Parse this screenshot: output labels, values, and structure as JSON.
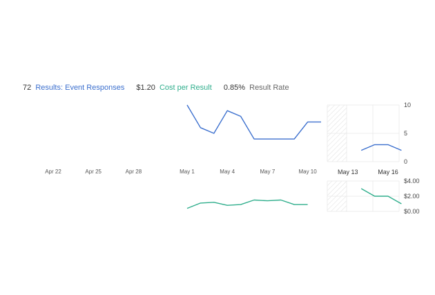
{
  "summary": {
    "results": {
      "value": "72",
      "label": "Results: Event Responses",
      "color": "#3b6fce"
    },
    "cost": {
      "value": "$1.20",
      "label": "Cost per Result",
      "color": "#2fae8c"
    },
    "rate": {
      "value": "0.85%",
      "label": "Result Rate",
      "color": "#666666"
    }
  },
  "chart_data": [
    {
      "type": "line",
      "x": [
        "Apr 22",
        "Apr 25",
        "Apr 28",
        "May 1",
        "May 4",
        "May 7",
        "May 10",
        "May 13",
        "May 16"
      ],
      "series": [
        {
          "values": [
            {
              "x": "May 1",
              "y": 10
            },
            {
              "x": "May 2",
              "y": 6
            },
            {
              "x": "May 3",
              "y": 5
            },
            {
              "x": "May 4",
              "y": 9
            },
            {
              "x": "May 5",
              "y": 8
            },
            {
              "x": "May 6",
              "y": 4
            },
            {
              "x": "May 7",
              "y": 4
            },
            {
              "x": "May 8",
              "y": 4
            },
            {
              "x": "May 9",
              "y": 4
            },
            {
              "x": "May 10",
              "y": 7
            },
            {
              "x": "May 11",
              "y": 7
            },
            {
              "x": "May 14",
              "y": 2
            },
            {
              "x": "May 15",
              "y": 3
            },
            {
              "x": "May 16",
              "y": 3
            },
            {
              "x": "May 17",
              "y": 2
            }
          ],
          "color": "#3b6fce"
        }
      ],
      "yticks": [
        "10",
        "5",
        "0"
      ],
      "ylim": [
        0,
        10
      ]
    },
    {
      "type": "line",
      "series": [
        {
          "values": [
            {
              "x": "May 1",
              "y": 0.4
            },
            {
              "x": "May 2",
              "y": 1.1
            },
            {
              "x": "May 3",
              "y": 1.2
            },
            {
              "x": "May 4",
              "y": 0.8
            },
            {
              "x": "May 5",
              "y": 0.9
            },
            {
              "x": "May 6",
              "y": 1.5
            },
            {
              "x": "May 7",
              "y": 1.4
            },
            {
              "x": "May 8",
              "y": 1.5
            },
            {
              "x": "May 9",
              "y": 0.9
            },
            {
              "x": "May 10",
              "y": 0.9
            },
            {
              "x": "May 14",
              "y": 3.0
            },
            {
              "x": "May 15",
              "y": 2.0
            },
            {
              "x": "May 16",
              "y": 2.0
            },
            {
              "x": "May 17",
              "y": 1.0
            }
          ],
          "color": "#2fae8c"
        }
      ],
      "yticks": [
        "$4.00",
        "$2.00",
        "$0.00"
      ],
      "ylim": [
        0,
        4
      ]
    }
  ]
}
